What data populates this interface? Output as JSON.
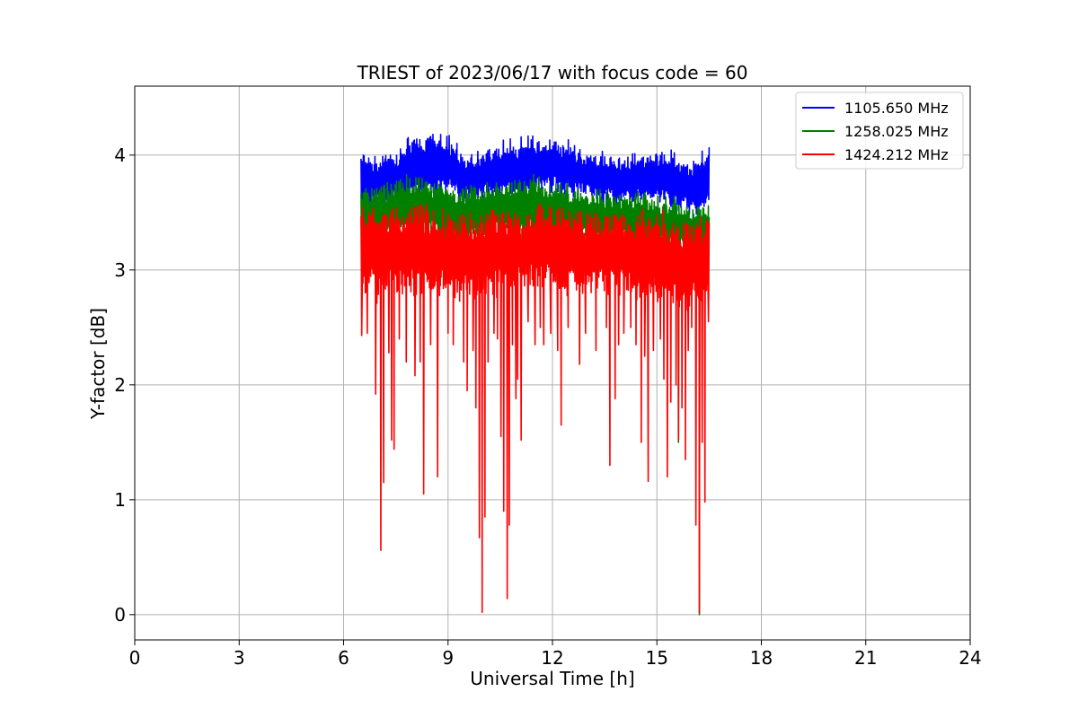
{
  "chart_data": {
    "type": "line",
    "title": "TRIEST of 2023/06/17 with focus code = 60",
    "xlabel": "Universal Time [h]",
    "ylabel": "Y-factor [dB]",
    "xlim": [
      0,
      24
    ],
    "ylim": [
      -0.22,
      4.6
    ],
    "xticks": [
      0,
      3,
      6,
      9,
      12,
      15,
      18,
      21,
      24
    ],
    "yticks": [
      0,
      1,
      2,
      3,
      4
    ],
    "grid": true,
    "legend_position": "top-right",
    "series": [
      {
        "name": "1105.650 MHz",
        "color": "#0000ff",
        "style": "noisy-band",
        "x": [
          6.5,
          7.0,
          7.5,
          8.0,
          8.5,
          9.0,
          9.5,
          10.0,
          10.5,
          11.0,
          11.5,
          12.0,
          12.5,
          13.0,
          13.5,
          14.0,
          14.5,
          15.0,
          15.5,
          16.0,
          16.5
        ],
        "upper": [
          4.05,
          4.0,
          4.05,
          4.25,
          4.2,
          4.2,
          4.05,
          4.05,
          4.15,
          4.15,
          4.2,
          4.15,
          4.15,
          4.05,
          4.05,
          4.0,
          4.05,
          4.05,
          4.05,
          3.95,
          4.1
        ],
        "lower": [
          3.5,
          3.5,
          3.55,
          3.6,
          3.6,
          3.65,
          3.55,
          3.6,
          3.6,
          3.6,
          3.65,
          3.65,
          3.6,
          3.6,
          3.55,
          3.55,
          3.55,
          3.55,
          3.5,
          3.45,
          3.5
        ],
        "dips": [],
        "seed": 11
      },
      {
        "name": "1258.025 MHz",
        "color": "#008000",
        "style": "noisy-band",
        "x": [
          6.5,
          7.0,
          7.5,
          8.0,
          8.5,
          9.0,
          9.5,
          10.0,
          10.5,
          11.0,
          11.5,
          12.0,
          12.5,
          13.0,
          13.5,
          14.0,
          14.5,
          15.0,
          15.5,
          16.0,
          16.5
        ],
        "upper": [
          3.75,
          3.75,
          3.8,
          3.85,
          3.8,
          3.75,
          3.75,
          3.75,
          3.8,
          3.8,
          3.85,
          3.8,
          3.75,
          3.75,
          3.7,
          3.7,
          3.7,
          3.65,
          3.65,
          3.6,
          3.6
        ],
        "lower": [
          3.2,
          3.2,
          3.25,
          3.25,
          3.25,
          3.25,
          3.2,
          3.25,
          3.25,
          3.25,
          3.25,
          3.25,
          3.25,
          3.2,
          3.2,
          3.2,
          3.2,
          3.15,
          3.15,
          3.1,
          3.1
        ],
        "dips": [
          [
            12.78,
            2.18
          ],
          [
            15.62,
            1.5
          ],
          [
            16.22,
            0.0
          ]
        ],
        "seed": 23
      },
      {
        "name": "1424.212 MHz",
        "color": "#ff0000",
        "style": "noisy-band",
        "x": [
          6.5,
          7.0,
          7.5,
          8.0,
          8.5,
          9.0,
          9.5,
          10.0,
          10.5,
          11.0,
          11.5,
          12.0,
          12.5,
          13.0,
          13.5,
          14.0,
          14.5,
          15.0,
          15.5,
          16.0,
          16.5
        ],
        "upper": [
          3.6,
          3.55,
          3.6,
          3.6,
          3.6,
          3.55,
          3.55,
          3.55,
          3.6,
          3.6,
          3.6,
          3.6,
          3.55,
          3.55,
          3.55,
          3.55,
          3.55,
          3.55,
          3.5,
          3.5,
          3.5
        ],
        "lower": [
          2.75,
          2.7,
          2.75,
          2.75,
          2.75,
          2.7,
          2.7,
          2.7,
          2.75,
          2.75,
          2.8,
          2.8,
          2.75,
          2.75,
          2.75,
          2.75,
          2.7,
          2.7,
          2.65,
          2.6,
          2.6
        ],
        "dips": [
          [
            6.52,
            2.43
          ],
          [
            6.68,
            2.45
          ],
          [
            6.92,
            1.92
          ],
          [
            7.07,
            0.56
          ],
          [
            7.15,
            1.15
          ],
          [
            7.3,
            2.28
          ],
          [
            7.38,
            1.52
          ],
          [
            7.45,
            1.44
          ],
          [
            7.6,
            2.4
          ],
          [
            7.8,
            2.2
          ],
          [
            8.05,
            2.08
          ],
          [
            8.2,
            2.2
          ],
          [
            8.3,
            1.05
          ],
          [
            8.5,
            2.35
          ],
          [
            8.7,
            1.2
          ],
          [
            9.0,
            2.45
          ],
          [
            9.15,
            2.35
          ],
          [
            9.45,
            2.2
          ],
          [
            9.55,
            1.95
          ],
          [
            9.72,
            2.3
          ],
          [
            9.8,
            1.8
          ],
          [
            9.9,
            0.67
          ],
          [
            9.98,
            0.02
          ],
          [
            10.06,
            0.85
          ],
          [
            10.15,
            2.2
          ],
          [
            10.32,
            2.45
          ],
          [
            10.42,
            2.4
          ],
          [
            10.52,
            1.55
          ],
          [
            10.6,
            0.9
          ],
          [
            10.7,
            0.14
          ],
          [
            10.76,
            0.78
          ],
          [
            10.85,
            2.35
          ],
          [
            10.95,
            1.88
          ],
          [
            11.0,
            2.05
          ],
          [
            11.1,
            1.52
          ],
          [
            11.3,
            2.55
          ],
          [
            11.5,
            2.35
          ],
          [
            11.65,
            2.5
          ],
          [
            11.75,
            2.35
          ],
          [
            11.95,
            2.45
          ],
          [
            12.15,
            2.3
          ],
          [
            12.25,
            1.65
          ],
          [
            12.45,
            2.5
          ],
          [
            12.78,
            2.18
          ],
          [
            12.95,
            2.45
          ],
          [
            13.25,
            2.3
          ],
          [
            13.55,
            2.5
          ],
          [
            13.65,
            1.3
          ],
          [
            13.8,
            1.88
          ],
          [
            13.9,
            2.35
          ],
          [
            14.05,
            2.45
          ],
          [
            14.25,
            2.5
          ],
          [
            14.4,
            2.35
          ],
          [
            14.55,
            1.5
          ],
          [
            14.65,
            2.25
          ],
          [
            14.75,
            1.16
          ],
          [
            14.9,
            2.3
          ],
          [
            15.1,
            2.4
          ],
          [
            15.2,
            2.05
          ],
          [
            15.3,
            1.2
          ],
          [
            15.4,
            1.85
          ],
          [
            15.55,
            2.0
          ],
          [
            15.62,
            1.52
          ],
          [
            15.72,
            1.8
          ],
          [
            15.82,
            1.35
          ],
          [
            15.9,
            2.3
          ],
          [
            16.0,
            2.5
          ],
          [
            16.12,
            0.78
          ],
          [
            16.22,
            0.02
          ],
          [
            16.3,
            1.5
          ],
          [
            16.38,
            0.98
          ],
          [
            16.48,
            2.55
          ]
        ],
        "seed": 37
      }
    ]
  }
}
